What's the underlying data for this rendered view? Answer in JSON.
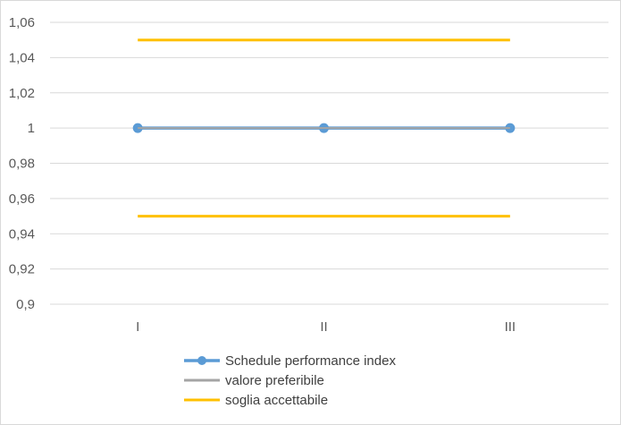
{
  "chart_data": {
    "type": "line",
    "title": "",
    "xlabel": "",
    "ylabel": "",
    "categories": [
      "I",
      "II",
      "III"
    ],
    "y_ticks": [
      "0,9",
      "0,92",
      "0,94",
      "0,96",
      "0,98",
      "1",
      "1,02",
      "1,04",
      "1,06"
    ],
    "ylim": [
      0.9,
      1.06
    ],
    "y_step": 0.02,
    "grid": "horizontal",
    "legend_position": "bottom",
    "series": [
      {
        "name": "Schedule performance index",
        "values": [
          1,
          1,
          1
        ],
        "color": "#5b9bd5",
        "markers": true
      },
      {
        "name": "valore preferibile",
        "values": [
          1,
          1,
          1
        ],
        "color": "#a5a5a5",
        "markers": false
      },
      {
        "name": "soglia accettabile",
        "values": [
          1.05,
          1.05,
          1.05
        ],
        "color": "#ffc000",
        "markers": false
      },
      {
        "name": "",
        "values": [
          0.95,
          0.95,
          0.95
        ],
        "color": "#ffc000",
        "markers": false
      }
    ]
  }
}
